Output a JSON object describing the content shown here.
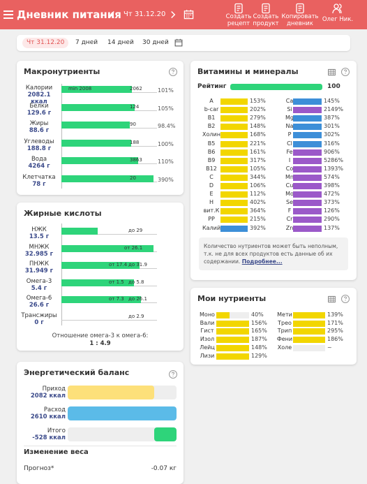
{
  "header": {
    "title": "Дневник питания",
    "date": "Чт 31.12.20",
    "actions": [
      "Создать рецепт",
      "Создать продукт",
      "Копировать дневник",
      "Олег Ник."
    ]
  },
  "tabs": {
    "items": [
      "Чт 31.12.20",
      "7 дней",
      "14 дней",
      "30 дней"
    ]
  },
  "macros": {
    "title": "Макронутриенты",
    "rows": [
      {
        "name": "Калории",
        "amount": "2082.1 ккал",
        "min": "min 2008",
        "norm": "2062",
        "percent": "101%"
      },
      {
        "name": "Белки",
        "amount": "129.6 г",
        "norm": "124",
        "percent": "105%"
      },
      {
        "name": "Жиры",
        "amount": "88.6 г",
        "norm": "90",
        "percent": "98.4%"
      },
      {
        "name": "Углеводы",
        "amount": "188.8 г",
        "norm": "188",
        "percent": "100%"
      },
      {
        "name": "Вода",
        "amount": "4264 г",
        "norm": "3863",
        "percent": "110%"
      },
      {
        "name": "Клетчатка",
        "amount": "78 г",
        "norm": "20",
        "percent": "390%"
      }
    ]
  },
  "fatty": {
    "title": "Жирные кислоты",
    "rows": [
      {
        "name": "НЖК",
        "amount": "13.5 г",
        "hi": "до 29"
      },
      {
        "name": "МНЖК",
        "amount": "32.985 г",
        "lo": "от 26.1"
      },
      {
        "name": "ПНЖК",
        "amount": "31.949 г",
        "lo": "от 17.4",
        "hi": "до 31.9"
      },
      {
        "name": "Омега-3",
        "amount": "5.4 г",
        "lo": "от 1.5",
        "hi": "до 5.8"
      },
      {
        "name": "Омега-6",
        "amount": "26.6 г",
        "lo": "от 7.3",
        "hi": "до 26.1"
      },
      {
        "name": "Трансжиры",
        "amount": "0 г",
        "hi": "до 2.9"
      }
    ],
    "ratio_label": "Отношение омега-3 к омега-6:",
    "ratio": "1 : 4.9"
  },
  "energy": {
    "title": "Энергетический баланс",
    "rows": [
      {
        "name": "Приход",
        "amount": "2082 ккал",
        "color": "#fde07a"
      },
      {
        "name": "Расход",
        "amount": "2610 ккал",
        "color": "#5bbbe8"
      },
      {
        "name": "Итого",
        "amount": "-528 ккал",
        "color": "#2ed47a"
      }
    ],
    "weight_title": "Изменение веса",
    "forecast_label": "Прогноз*",
    "forecast": "-0.07 кг"
  },
  "vitamins": {
    "title": "Витамины и минералы",
    "rating_label": "Рейтинг",
    "rating": 100,
    "left": [
      {
        "name": "A",
        "percent": "153%",
        "color": "#f2d600"
      },
      {
        "name": "b-car",
        "percent": "202%",
        "color": "#f2d600"
      },
      {
        "name": "B1",
        "percent": "279%",
        "color": "#f2d600"
      },
      {
        "name": "B2",
        "percent": "148%",
        "color": "#f2d600"
      },
      {
        "name": "Холин",
        "percent": "168%",
        "color": "#f2d600"
      },
      {
        "name": "B5",
        "percent": "221%",
        "color": "#f2d600"
      },
      {
        "name": "B6",
        "percent": "161%",
        "color": "#f2d600"
      },
      {
        "name": "B9",
        "percent": "317%",
        "color": "#f2d600"
      },
      {
        "name": "B12",
        "percent": "105%",
        "color": "#f2d600"
      },
      {
        "name": "C",
        "percent": "344%",
        "color": "#f2d600"
      },
      {
        "name": "D",
        "percent": "106%",
        "color": "#f2d600"
      },
      {
        "name": "E",
        "percent": "112%",
        "color": "#f2d600"
      },
      {
        "name": "H",
        "percent": "402%",
        "color": "#f2d600"
      },
      {
        "name": "вит.К",
        "percent": "364%",
        "color": "#f2d600"
      },
      {
        "name": "PP",
        "percent": "215%",
        "color": "#f2d600"
      },
      {
        "name": "Калий",
        "percent": "392%",
        "color": "#3d8fd8"
      }
    ],
    "right": [
      {
        "name": "Ca",
        "percent": "145%",
        "color": "#3d8fd8"
      },
      {
        "name": "Si",
        "percent": "2149%",
        "color": "#9b59c9"
      },
      {
        "name": "Mg",
        "percent": "387%",
        "color": "#3d8fd8"
      },
      {
        "name": "Na",
        "percent": "301%",
        "color": "#3d8fd8"
      },
      {
        "name": "P",
        "percent": "302%",
        "color": "#3d8fd8"
      },
      {
        "name": "Cl",
        "percent": "316%",
        "color": "#3d8fd8"
      },
      {
        "name": "Fe",
        "percent": "906%",
        "color": "#9b59c9"
      },
      {
        "name": "I",
        "percent": "5286%",
        "color": "#9b59c9"
      },
      {
        "name": "Co",
        "percent": "1393%",
        "color": "#9b59c9"
      },
      {
        "name": "Mn",
        "percent": "574%",
        "color": "#9b59c9"
      },
      {
        "name": "Cu",
        "percent": "398%",
        "color": "#9b59c9"
      },
      {
        "name": "Mo",
        "percent": "472%",
        "color": "#9b59c9"
      },
      {
        "name": "Se",
        "percent": "373%",
        "color": "#9b59c9"
      },
      {
        "name": "F",
        "percent": "126%",
        "color": "#9b59c9"
      },
      {
        "name": "Cr",
        "percent": "290%",
        "color": "#9b59c9"
      },
      {
        "name": "Zn",
        "percent": "137%",
        "color": "#9b59c9"
      }
    ],
    "note": "Количество нутриентов может быть неполным, т.к. не для всех продуктов есть данные об их содержании.",
    "link": "Подробнее..."
  },
  "my": {
    "title": "Мои нутриенты",
    "left": [
      {
        "name": "Моно",
        "percent": "40%"
      },
      {
        "name": "Вали",
        "percent": "156%"
      },
      {
        "name": "Гист",
        "percent": "165%"
      },
      {
        "name": "Изол",
        "percent": "187%"
      },
      {
        "name": "Лейц",
        "percent": "148%"
      },
      {
        "name": "Лизи",
        "percent": "129%"
      }
    ],
    "right": [
      {
        "name": "Мети",
        "percent": "139%"
      },
      {
        "name": "Трео",
        "percent": "171%"
      },
      {
        "name": "Трип",
        "percent": "295%"
      },
      {
        "name": "Фени",
        "percent": "186%"
      },
      {
        "name": "Холе",
        "percent": "~"
      }
    ]
  }
}
